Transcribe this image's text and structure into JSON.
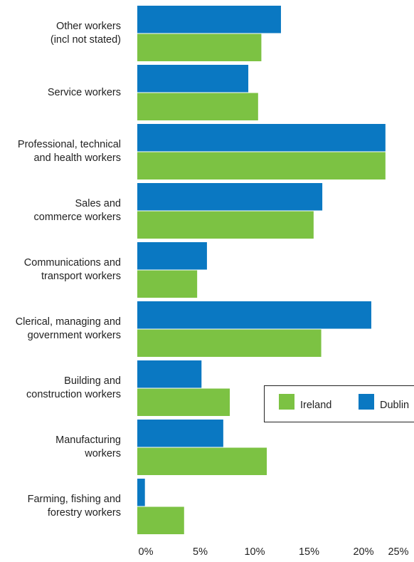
{
  "chart_data": {
    "type": "bar",
    "orientation": "horizontal",
    "categories": [
      "Other workers\n(incl not stated)",
      "Service workers",
      "Professional, technical\nand health workers",
      "Sales and\ncommerce workers",
      "Communications and\ntransport workers",
      "Clerical, managing and\ngovernment workers",
      "Building and\nconstruction workers",
      "Manufacturing\nworkers",
      "Farming, fishing and\nforestry workers"
    ],
    "series": [
      {
        "name": "Dublin",
        "color": "#0a78c2",
        "values": [
          13.2,
          10.2,
          22.8,
          17.0,
          6.4,
          21.5,
          5.9,
          7.9,
          0.7
        ]
      },
      {
        "name": "Ireland",
        "color": "#7cc243",
        "values": [
          11.4,
          11.1,
          22.8,
          16.2,
          5.5,
          16.9,
          8.5,
          11.9,
          4.3
        ]
      }
    ],
    "x_ticks": [
      "0%",
      "5%",
      "10%",
      "15%",
      "20%",
      "25%"
    ],
    "xlim": [
      0,
      25
    ],
    "grid": false,
    "legend": {
      "placement": "right",
      "items": [
        "Ireland",
        "Dublin"
      ]
    }
  }
}
